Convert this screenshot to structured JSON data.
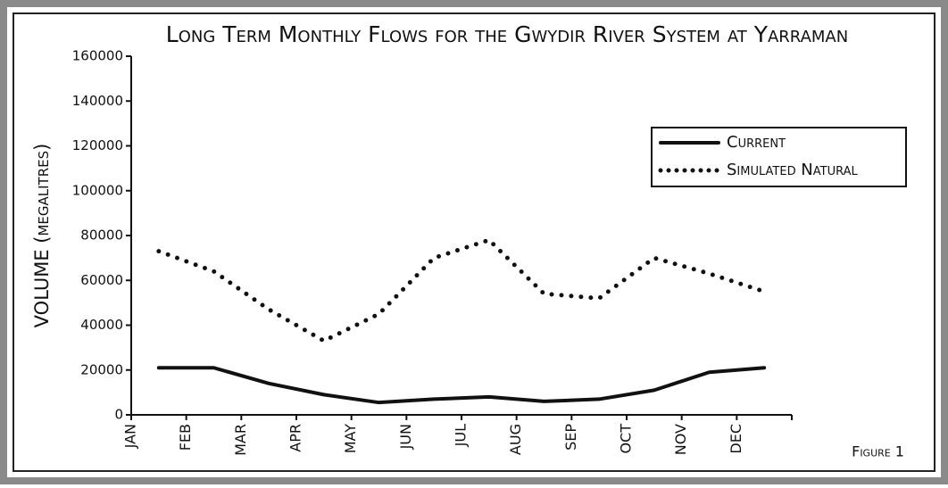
{
  "chart_data": {
    "type": "line",
    "title": "Long Term Monthly Flows for the Gwydir River System at Yarraman",
    "y_label": "VOLUME (megalitres)",
    "annotation": "Figure 1",
    "categories": [
      "JAN",
      "FEB",
      "MAR",
      "APR",
      "MAY",
      "JUN",
      "JUL",
      "AUG",
      "SEP",
      "OCT",
      "NOV",
      "DEC"
    ],
    "series": [
      {
        "name": "Current",
        "color": "#111111",
        "style": "solid",
        "values": [
          21000,
          21000,
          14000,
          9000,
          5500,
          7000,
          8000,
          6000,
          7000,
          11000,
          19000,
          21000
        ]
      },
      {
        "name": "Simulated Natural",
        "color": "#111111",
        "style": "dotted",
        "values": [
          73000,
          64000,
          47000,
          33000,
          45000,
          70000,
          78000,
          54000,
          52000,
          70000,
          63000,
          55000
        ]
      }
    ],
    "ylim": [
      0,
      160000
    ],
    "yticks": [
      0,
      20000,
      40000,
      60000,
      80000,
      100000,
      120000,
      140000,
      160000
    ],
    "legend": "upper right"
  }
}
